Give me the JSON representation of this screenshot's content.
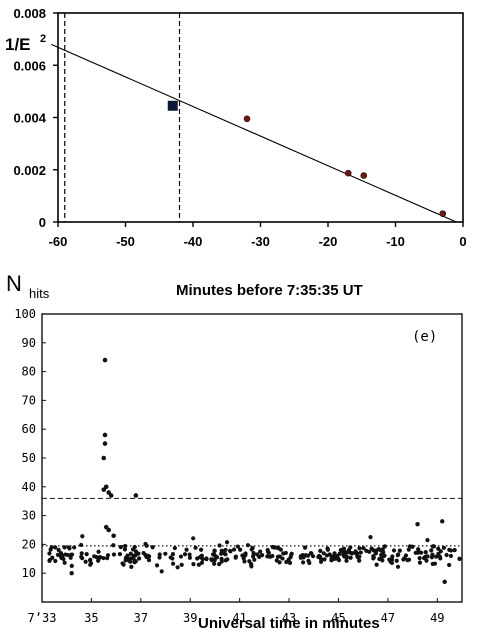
{
  "chart_data": [
    {
      "type": "scatter",
      "ylabel": "1/E",
      "ylabel_superscript": "2",
      "xlabel": "Minutes before 7:35:35 UT",
      "xlim": [
        -60,
        0
      ],
      "ylim": [
        0,
        0.008
      ],
      "x_ticks": [
        -60,
        -50,
        -40,
        -30,
        -20,
        -10,
        0
      ],
      "y_ticks": [
        "0",
        "0.002",
        "0.004",
        "0.006",
        "0.008"
      ],
      "y_tick_values": [
        0,
        0.002,
        0.004,
        0.006,
        0.008
      ],
      "points": [
        {
          "x": -32,
          "y": 0.00395
        },
        {
          "x": -17,
          "y": 0.00187
        },
        {
          "x": -14.7,
          "y": 0.00178
        },
        {
          "x": -3,
          "y": 0.00032
        }
      ],
      "square_point": {
        "x": -43,
        "y": 0.00445
      },
      "fit_line": {
        "x": [
          -61,
          -1
        ],
        "y": [
          0.0068,
          0.0
        ]
      },
      "vertical_dashed_lines": [
        -59,
        -42
      ],
      "grid": false
    },
    {
      "type": "scatter",
      "ylabel": "N",
      "ylabel_subscript": "hits",
      "xlabel": "Universal time in minutes",
      "panel_label": "(e)",
      "xlim": [
        33,
        50
      ],
      "ylim": [
        0,
        100
      ],
      "x_ticks": [
        33,
        35,
        37,
        39,
        41,
        43,
        45,
        47,
        49
      ],
      "x_tick_labels": [
        "7ʼ33",
        "35",
        "37",
        "39",
        "41",
        "43",
        "45",
        "47",
        "49"
      ],
      "y_ticks": [
        10,
        20,
        30,
        40,
        50,
        60,
        70,
        80,
        90,
        100
      ],
      "y_tick_labels": [
        "10",
        "20",
        "30",
        "40",
        "50",
        "60",
        "70",
        "80",
        "90",
        "100"
      ],
      "dashed_threshold": 36,
      "dotted_threshold": 19.5,
      "spike_points": [
        {
          "x": 35.55,
          "y": 84
        },
        {
          "x": 35.55,
          "y": 58
        },
        {
          "x": 35.55,
          "y": 55
        },
        {
          "x": 35.5,
          "y": 50
        },
        {
          "x": 35.6,
          "y": 40
        },
        {
          "x": 35.5,
          "y": 39
        },
        {
          "x": 35.7,
          "y": 38
        },
        {
          "x": 35.8,
          "y": 37
        },
        {
          "x": 35.6,
          "y": 26
        },
        {
          "x": 35.7,
          "y": 25
        },
        {
          "x": 35.9,
          "y": 23
        },
        {
          "x": 36.8,
          "y": 37
        }
      ],
      "background_points": {
        "count": 330,
        "x_range": [
          33.3,
          49.8
        ],
        "typical_range": [
          12,
          20
        ],
        "note_points": [
          {
            "x": 48.2,
            "y": 27
          },
          {
            "x": 49.2,
            "y": 28
          },
          {
            "x": 49.3,
            "y": 7
          },
          {
            "x": 34.2,
            "y": 10
          },
          {
            "x": 49.9,
            "y": 15
          }
        ]
      },
      "grid": false
    }
  ]
}
